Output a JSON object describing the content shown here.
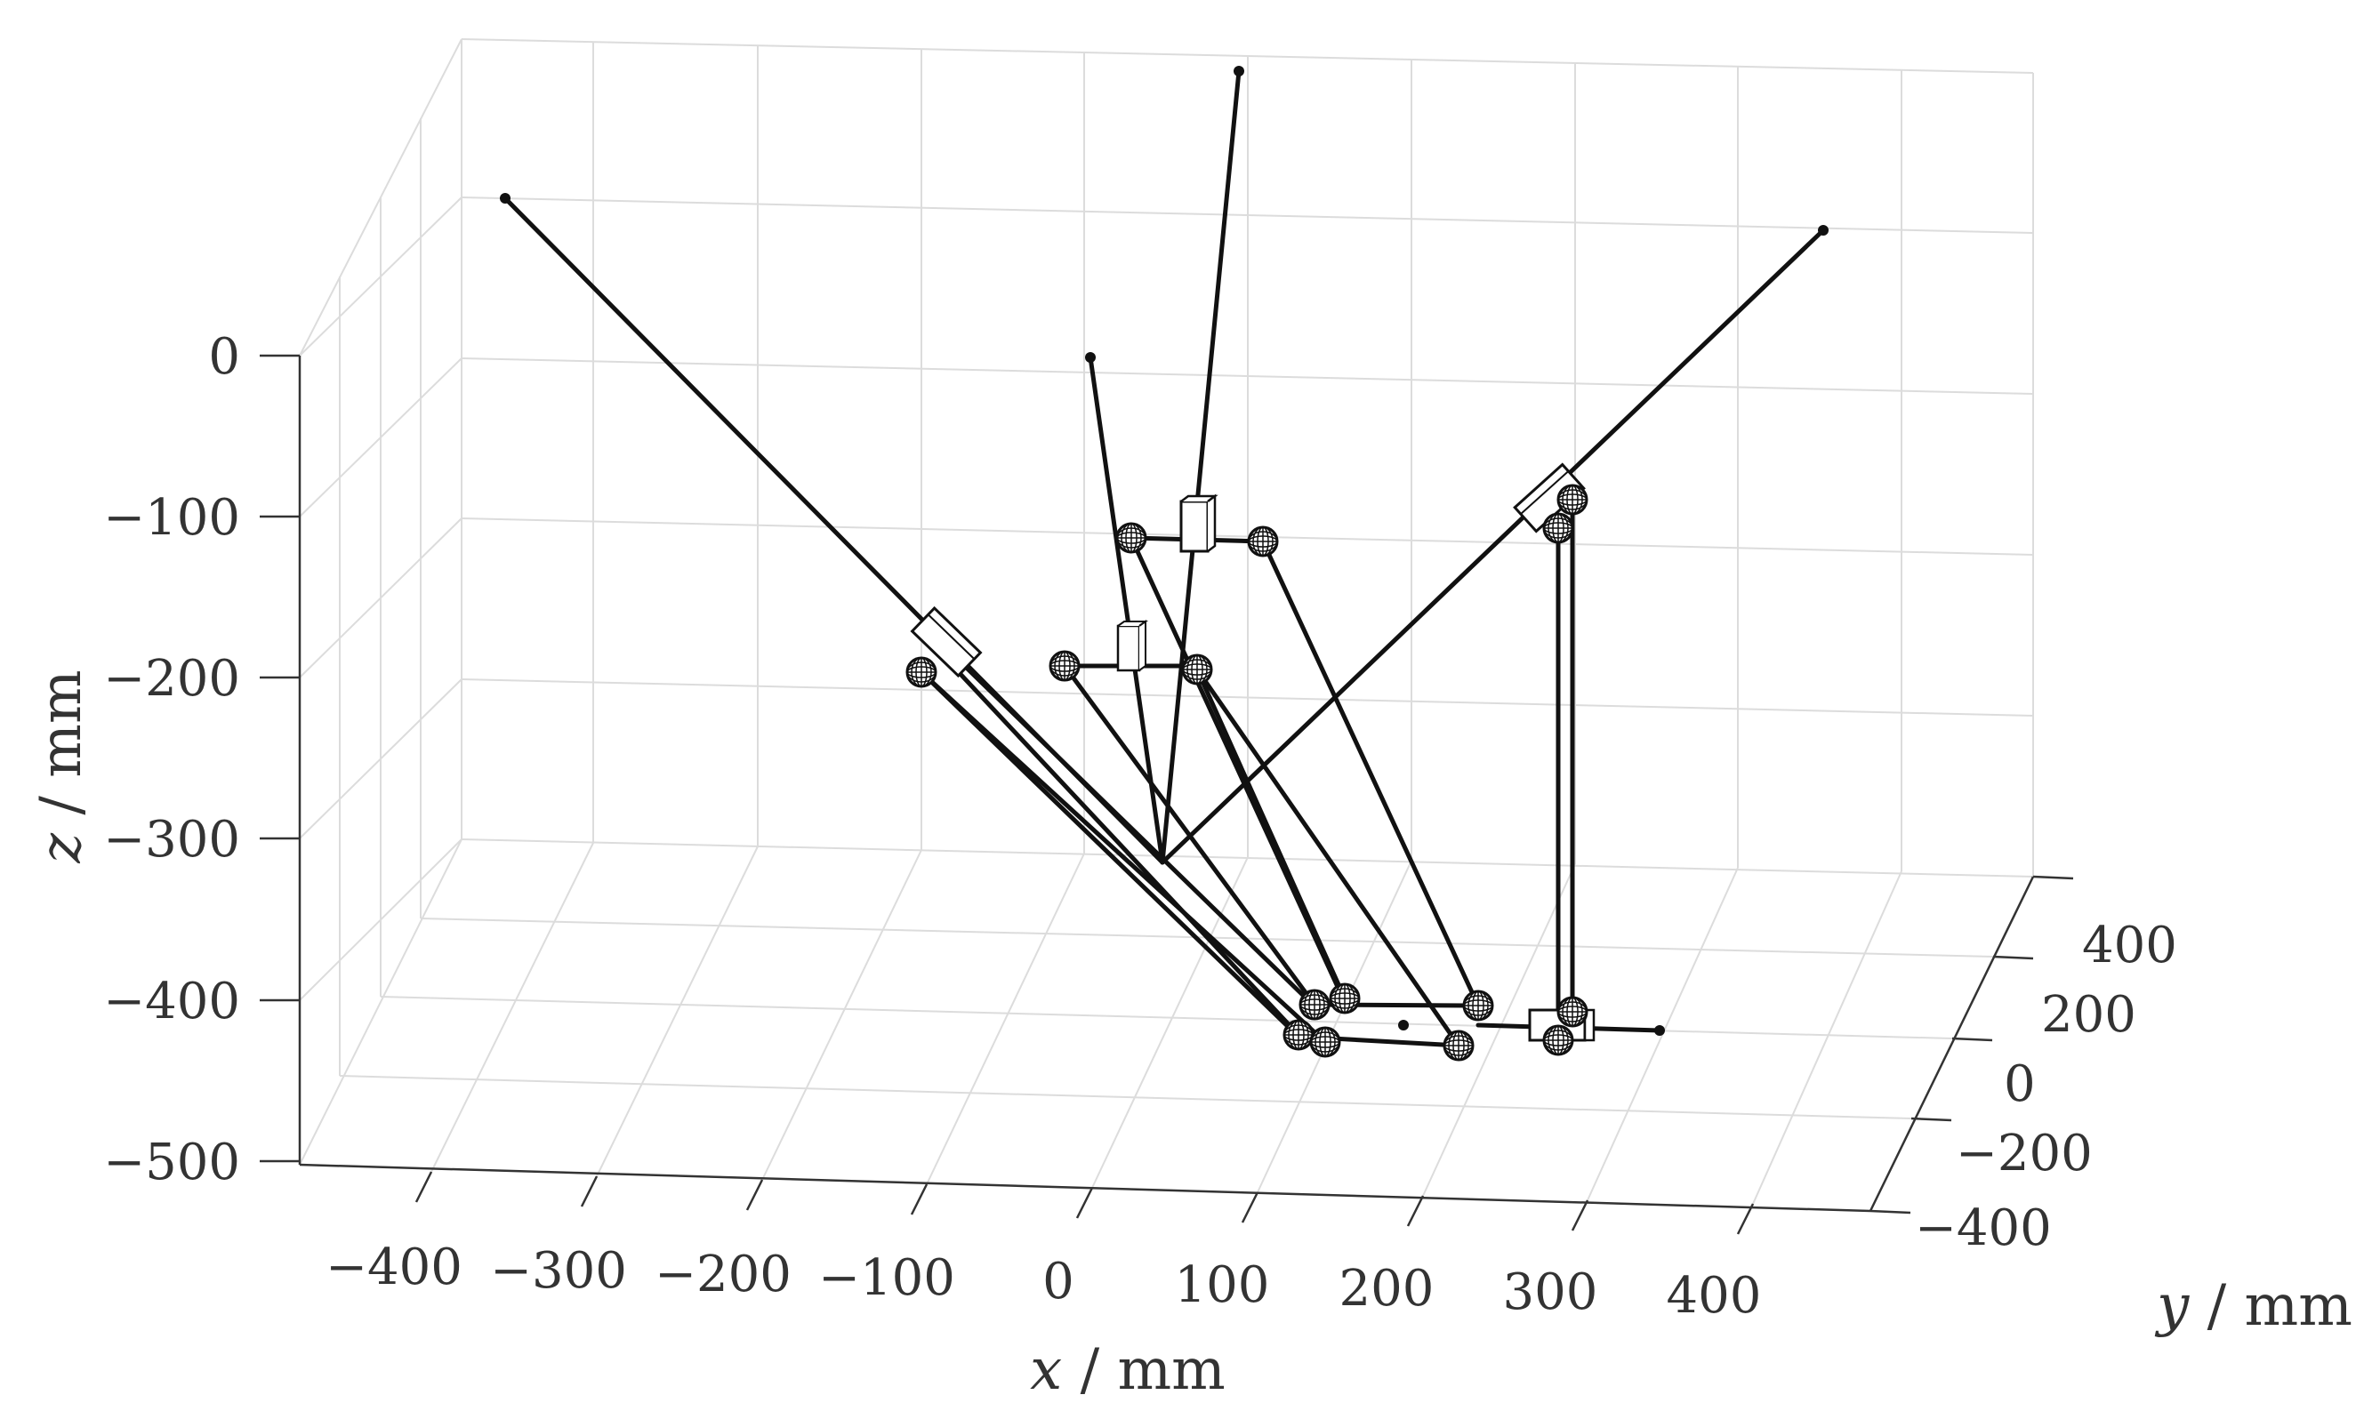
{
  "chart_data": {
    "type": "3d-line",
    "xlabel": {
      "var": "x",
      "unit": " / mm"
    },
    "ylabel": {
      "var": "y",
      "unit": " / mm"
    },
    "zlabel": {
      "var": "z",
      "unit": " / mm"
    },
    "x_ticks": [
      "−400",
      "−300",
      "−200",
      "−100",
      "0",
      "100",
      "200",
      "300",
      "400"
    ],
    "y_ticks": [
      "−400",
      "−200",
      "0",
      "200",
      "400"
    ],
    "z_ticks": [
      "0",
      "−100",
      "−200",
      "−300",
      "−400",
      "−500"
    ],
    "xlim": [
      -450,
      450
    ],
    "ylim": [
      -500,
      500
    ],
    "zlim": [
      -510,
      0
    ],
    "grid": true,
    "line_color": "#111111",
    "grid_color": "#dcdcdc",
    "joint_icon": "globe-icon",
    "slider_icon": "box-icon"
  }
}
